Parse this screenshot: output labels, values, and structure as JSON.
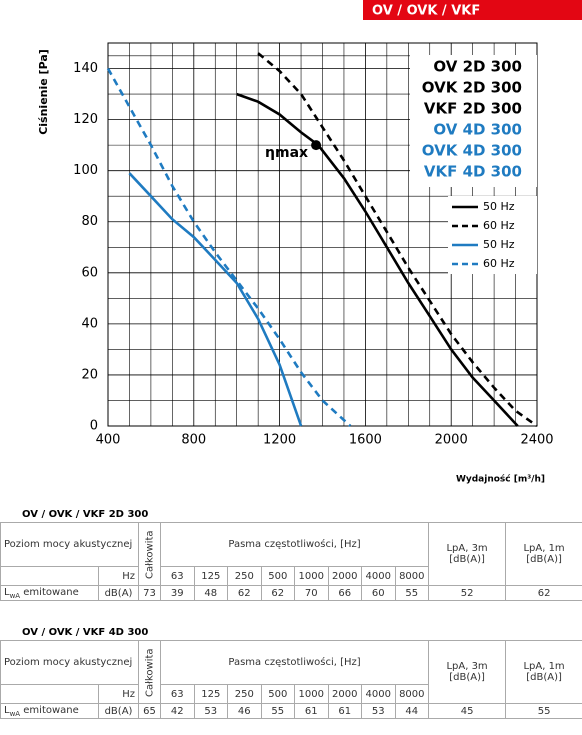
{
  "banner": "OV / OVK / VKF",
  "chart_data": {
    "type": "line",
    "y_label": "Ciśnienie [Pa]",
    "x_label": "Wydajność [m³/h]",
    "xlim": [
      400,
      2400
    ],
    "xticks": [
      400,
      800,
      1200,
      1600,
      2000,
      2400
    ],
    "ylim": [
      0,
      150
    ],
    "yticks": [
      0,
      20,
      40,
      60,
      80,
      100,
      120,
      140
    ],
    "grid": true,
    "model_labels": [
      {
        "text": "OV 2D 300",
        "color": "#000000"
      },
      {
        "text": "OVK 2D 300",
        "color": "#000000"
      },
      {
        "text": "VKF 2D 300",
        "color": "#000000"
      },
      {
        "text": "OV 4D 300",
        "color": "#1f7bc1"
      },
      {
        "text": "OVK 4D 300",
        "color": "#1f7bc1"
      },
      {
        "text": "VKF 4D 300",
        "color": "#1f7bc1"
      }
    ],
    "annotation": {
      "text": "ηmax",
      "x": 1370,
      "y": 110
    },
    "series": [
      {
        "name": "50 Hz",
        "color": "#000000",
        "dashed": false,
        "x": [
          1000,
          1100,
          1200,
          1300,
          1380,
          1500,
          1600,
          1700,
          1800,
          1900,
          2000,
          2100,
          2200,
          2310
        ],
        "values": [
          130,
          127,
          122,
          115,
          110,
          97,
          84,
          70,
          56,
          43,
          30,
          19,
          10,
          0
        ]
      },
      {
        "name": "60 Hz",
        "color": "#000000",
        "dashed": true,
        "x": [
          1100,
          1200,
          1300,
          1400,
          1500,
          1600,
          1700,
          1800,
          1900,
          2000,
          2100,
          2200,
          2300,
          2400
        ],
        "values": [
          146,
          139,
          130,
          117,
          104,
          90,
          76,
          62,
          49,
          36,
          25,
          15,
          6,
          0
        ]
      },
      {
        "name": "50 Hz",
        "color": "#1f7bc1",
        "dashed": false,
        "x": [
          500,
          600,
          700,
          800,
          900,
          1000,
          1100,
          1200,
          1300
        ],
        "values": [
          99,
          90,
          81,
          74,
          65,
          56,
          42,
          24,
          0
        ]
      },
      {
        "name": "60 Hz",
        "color": "#1f7bc1",
        "dashed": true,
        "x": [
          400,
          500,
          600,
          700,
          800,
          900,
          1000,
          1100,
          1200,
          1300,
          1400,
          1530
        ],
        "values": [
          140,
          125,
          110,
          94,
          80,
          68,
          57,
          46,
          34,
          21,
          10,
          0
        ]
      }
    ]
  },
  "tables": [
    {
      "title": "OV / OVK / VKF 2D 300",
      "level": "Poziom mocy akustycznej",
      "total": "Całkowita",
      "bands_title": "Pasma częstotliwości, [Hz]",
      "lpa3": "LpA, 3m [dB(A)]",
      "lpa1": "LpA, 1m [dB(A)]",
      "unit_hz": "Hz",
      "bands": [
        63,
        125,
        250,
        500,
        1000,
        2000,
        4000,
        8000
      ],
      "row": {
        "label_main": "L",
        "label_sub": "wA",
        "label_rest": " emitowane",
        "unit": "dB(A)",
        "total": 73,
        "values": [
          39,
          48,
          62,
          62,
          70,
          66,
          60,
          55
        ],
        "lpa3": 52,
        "lpa1": 62
      }
    },
    {
      "title": "OV / OVK / VKF 4D 300",
      "level": "Poziom mocy akustycznej",
      "total": "Całkowita",
      "bands_title": "Pasma częstotliwości, [Hz]",
      "lpa3": "LpA, 3m [dB(A)]",
      "lpa1": "LpA, 1m [dB(A)]",
      "unit_hz": "Hz",
      "bands": [
        63,
        125,
        250,
        500,
        1000,
        2000,
        4000,
        8000
      ],
      "row": {
        "label_main": "L",
        "label_sub": "wA",
        "label_rest": " emitowane",
        "unit": "dB(A)",
        "total": 65,
        "values": [
          42,
          53,
          46,
          55,
          61,
          61,
          53,
          44
        ],
        "lpa3": 45,
        "lpa1": 55
      }
    }
  ]
}
